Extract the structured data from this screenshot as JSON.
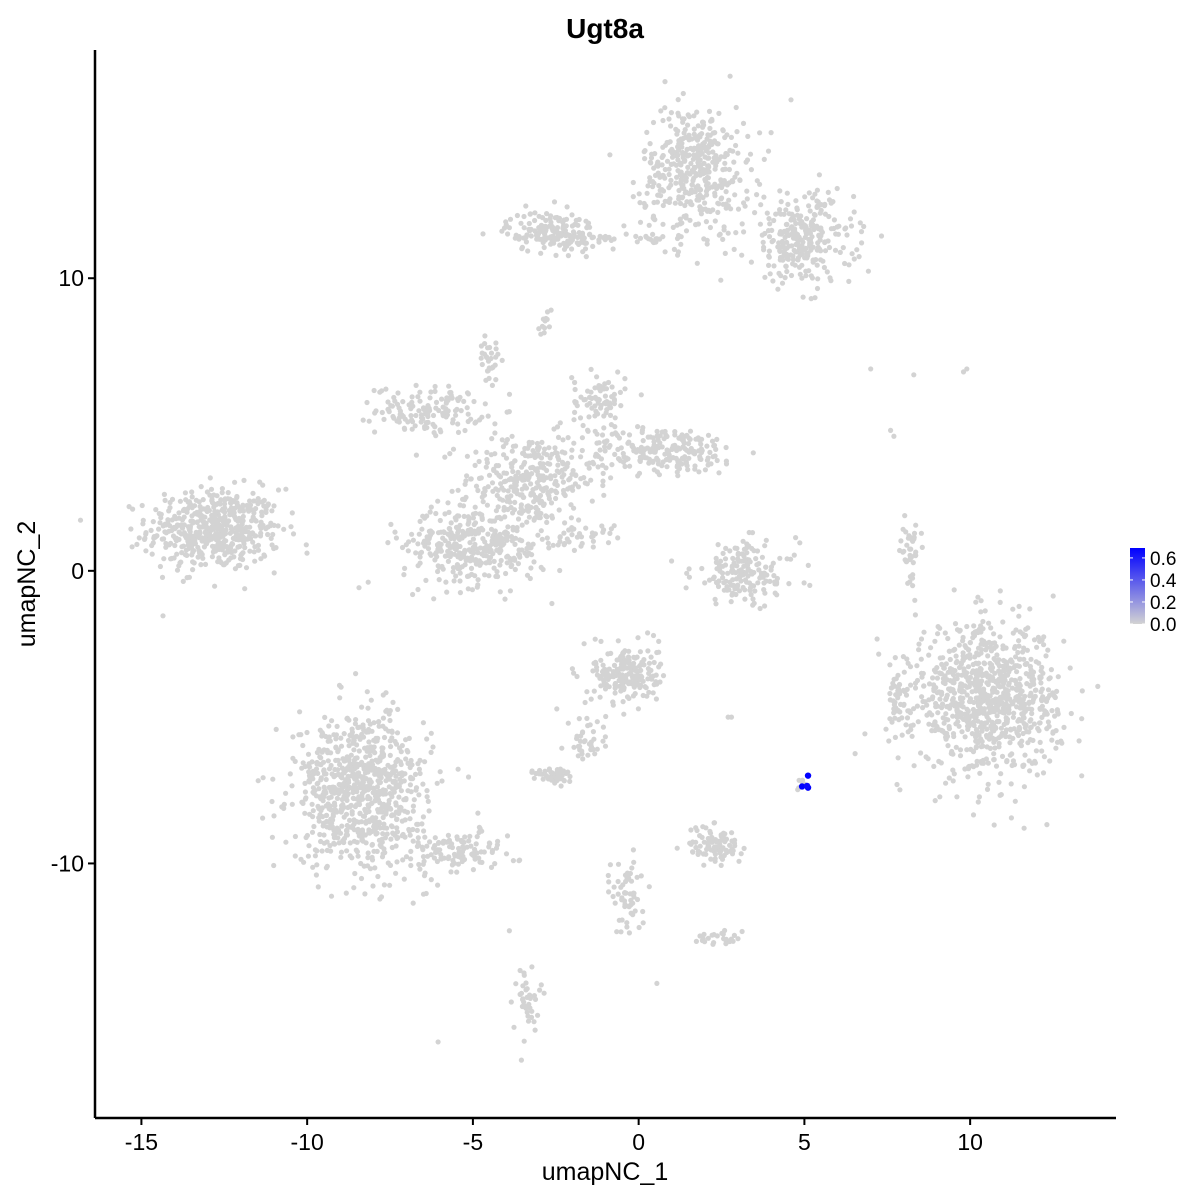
{
  "chart_data": {
    "type": "scatter",
    "title": "Ugt8a",
    "xlabel": "umapNC_1",
    "ylabel": "umapNC_2",
    "xlim": [
      -16.4,
      14.4
    ],
    "ylim": [
      -18.7,
      17.8
    ],
    "xticks": [
      -15,
      -10,
      -5,
      0,
      5,
      10
    ],
    "yticks": [
      -10,
      0,
      10
    ],
    "xtick_labels": [
      "-15",
      "-10",
      "-5",
      "0",
      "5",
      "10"
    ],
    "ytick_labels": [
      "-10",
      "0",
      "10"
    ],
    "grid": false,
    "low_color": "#d3d3d3",
    "high_color": "#0000ff",
    "legend": {
      "placement": "right",
      "type": "colorbar",
      "range": [
        0,
        0.69
      ],
      "ticks": [
        0.0,
        0.2,
        0.4,
        0.6
      ],
      "tick_labels": [
        "0.0",
        "0.2",
        "0.4",
        "0.6"
      ]
    },
    "clusters_zero_expression": [
      {
        "center": [
          -12.8,
          1.4
        ],
        "sd": [
          1.0,
          0.7
        ],
        "n": 520
      },
      {
        "center": [
          -6.3,
          5.5
        ],
        "sd": [
          0.8,
          0.4
        ],
        "n": 140
      },
      {
        "center": [
          -3.3,
          3.1
        ],
        "sd": [
          1.0,
          0.8
        ],
        "n": 300
      },
      {
        "center": [
          0.7,
          4.1
        ],
        "sd": [
          1.2,
          0.4
        ],
        "n": 220
      },
      {
        "center": [
          -1.2,
          5.8
        ],
        "sd": [
          0.4,
          0.5
        ],
        "n": 80
      },
      {
        "center": [
          -4.9,
          0.9
        ],
        "sd": [
          1.1,
          0.7
        ],
        "n": 380
      },
      {
        "center": [
          -4.5,
          7.2
        ],
        "sd": [
          0.15,
          0.35
        ],
        "n": 30
      },
      {
        "center": [
          -1.7,
          1.3
        ],
        "sd": [
          0.5,
          0.25
        ],
        "n": 30
      },
      {
        "center": [
          -2.6,
          11.6
        ],
        "sd": [
          0.7,
          0.35
        ],
        "n": 160
      },
      {
        "center": [
          -0.5,
          11.3
        ],
        "sd": [
          1.0,
          0.15
        ],
        "n": 40
      },
      {
        "center": [
          1.7,
          13.7
        ],
        "sd": [
          0.8,
          1.1
        ],
        "n": 420
      },
      {
        "center": [
          4.9,
          11.3
        ],
        "sd": [
          0.8,
          0.8
        ],
        "n": 280
      },
      {
        "center": [
          -2.8,
          8.7
        ],
        "sd": [
          0.15,
          0.3
        ],
        "n": 12
      },
      {
        "center": [
          3.2,
          -0.1
        ],
        "sd": [
          0.8,
          0.55
        ],
        "n": 170
      },
      {
        "center": [
          8.2,
          0.7
        ],
        "sd": [
          0.15,
          0.55
        ],
        "n": 40
      },
      {
        "center": [
          10.5,
          -4.4
        ],
        "sd": [
          1.1,
          1.25
        ],
        "n": 900
      },
      {
        "center": [
          7.9,
          -4.4
        ],
        "sd": [
          0.25,
          0.4
        ],
        "n": 40
      },
      {
        "center": [
          -8.4,
          -7.5
        ],
        "sd": [
          1.0,
          1.3
        ],
        "n": 800
      },
      {
        "center": [
          -5.5,
          -9.6
        ],
        "sd": [
          0.9,
          0.4
        ],
        "n": 120
      },
      {
        "center": [
          -0.4,
          -3.5
        ],
        "sd": [
          0.5,
          0.5
        ],
        "n": 200
      },
      {
        "center": [
          -1.5,
          -5.8
        ],
        "sd": [
          0.3,
          0.5
        ],
        "n": 40
      },
      {
        "center": [
          -2.5,
          -7.0
        ],
        "sd": [
          0.3,
          0.15
        ],
        "n": 50
      },
      {
        "center": [
          2.3,
          -9.4
        ],
        "sd": [
          0.4,
          0.35
        ],
        "n": 90
      },
      {
        "center": [
          -0.3,
          -11.0
        ],
        "sd": [
          0.25,
          0.7
        ],
        "n": 60
      },
      {
        "center": [
          2.3,
          -12.6
        ],
        "sd": [
          0.3,
          0.15
        ],
        "n": 25
      },
      {
        "center": [
          -3.4,
          -14.6
        ],
        "sd": [
          0.2,
          0.6
        ],
        "n": 40
      },
      {
        "center": [
          4.9,
          -7.3
        ],
        "sd": [
          0.1,
          0.1
        ],
        "n": 6
      }
    ],
    "isolated_zero_expression_points": [
      [
        -6.05,
        -16.1
      ],
      [
        0.55,
        -14.1
      ],
      [
        7.0,
        6.9
      ],
      [
        8.3,
        6.7
      ],
      [
        9.8,
        6.8
      ],
      [
        9.9,
        6.9
      ],
      [
        7.6,
        4.8
      ],
      [
        7.7,
        4.6
      ],
      [
        2.7,
        -5.0
      ],
      [
        2.8,
        -5.0
      ],
      [
        -3.9,
        -12.3
      ]
    ],
    "expressing_cells": [
      {
        "x": 5.11,
        "y": -7.0,
        "value": 0.69
      },
      {
        "x": 4.93,
        "y": -7.37,
        "value": 0.69
      },
      {
        "x": 5.11,
        "y": -7.41,
        "value": 0.69
      },
      {
        "x": 5.08,
        "y": -7.35,
        "value": 0.66
      }
    ]
  }
}
